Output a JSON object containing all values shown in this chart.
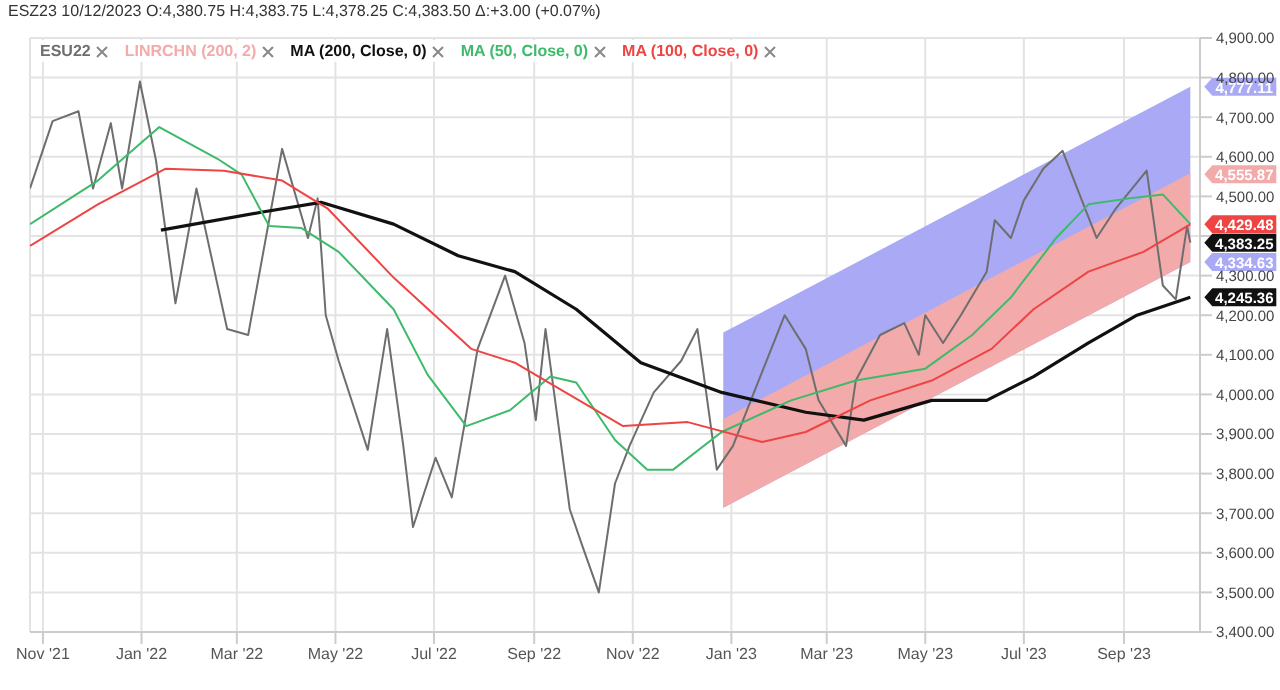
{
  "chart_data": {
    "type": "line",
    "title": "ESZ23 10/12/2023 O:4,380.75 H:4,383.75 L:4,378.25 C:4,383.50 Δ:+3.00 (+0.07%)",
    "xlim": [
      "2021-10-24",
      "2023-10-18"
    ],
    "xticks": [
      {
        "value": "2021-11-01",
        "label": "Nov '21"
      },
      {
        "value": "2022-01-01",
        "label": "Jan '22"
      },
      {
        "value": "2022-03-01",
        "label": "Mar '22"
      },
      {
        "value": "2022-05-01",
        "label": "May '22"
      },
      {
        "value": "2022-07-01",
        "label": "Jul '22"
      },
      {
        "value": "2022-09-01",
        "label": "Sep '22"
      },
      {
        "value": "2022-11-01",
        "label": "Nov '22"
      },
      {
        "value": "2023-01-01",
        "label": "Jan '23"
      },
      {
        "value": "2023-03-01",
        "label": "Mar '23"
      },
      {
        "value": "2023-05-01",
        "label": "May '23"
      },
      {
        "value": "2023-07-01",
        "label": "Jul '23"
      },
      {
        "value": "2023-09-01",
        "label": "Sep '23"
      }
    ],
    "ylim": [
      3400,
      4900
    ],
    "yticks": [
      {
        "value": 3400,
        "label": "3,400.00"
      },
      {
        "value": 3500,
        "label": "3,500.00"
      },
      {
        "value": 3600,
        "label": "3,600.00"
      },
      {
        "value": 3700,
        "label": "3,700.00"
      },
      {
        "value": 3800,
        "label": "3,800.00"
      },
      {
        "value": 3900,
        "label": "3,900.00"
      },
      {
        "value": 4000,
        "label": "4,000.00"
      },
      {
        "value": 4100,
        "label": "4,100.00"
      },
      {
        "value": 4200,
        "label": "4,200.00"
      },
      {
        "value": 4300,
        "label": "4,300.00"
      },
      {
        "value": 4400,
        "label": null
      },
      {
        "value": 4500,
        "label": "4,500.00"
      },
      {
        "value": 4600,
        "label": "4,600.00"
      },
      {
        "value": 4700,
        "label": "4,700.00"
      },
      {
        "value": 4800,
        "label": "4,800.00"
      },
      {
        "value": 4900,
        "label": "4,900.00"
      }
    ],
    "grid": true,
    "legend": "top left",
    "series": [
      {
        "name": "ESU22",
        "color": "#6e6e6e",
        "x": [
          "2021-10-24",
          "2021-11-07",
          "2021-11-23",
          "2021-12-02",
          "2021-12-13",
          "2021-12-20",
          "2021-12-31",
          "2022-01-10",
          "2022-01-22",
          "2022-02-04",
          "2022-02-23",
          "2022-03-08",
          "2022-03-29",
          "2022-04-14",
          "2022-04-20",
          "2022-04-25",
          "2022-05-03",
          "2022-05-21",
          "2022-06-02",
          "2022-06-12",
          "2022-06-18",
          "2022-07-02",
          "2022-07-12",
          "2022-07-28",
          "2022-08-14",
          "2022-08-26",
          "2022-09-02",
          "2022-09-08",
          "2022-09-23",
          "2022-10-01",
          "2022-10-11",
          "2022-10-21",
          "2022-10-30",
          "2022-11-14",
          "2022-12-01",
          "2022-12-11",
          "2022-12-23",
          "2023-01-02",
          "2023-01-15",
          "2023-02-03",
          "2023-02-16",
          "2023-02-24",
          "2023-03-13",
          "2023-03-19",
          "2023-04-03",
          "2023-04-18",
          "2023-04-27",
          "2023-05-01",
          "2023-05-12",
          "2023-05-23",
          "2023-06-08",
          "2023-06-13",
          "2023-06-23",
          "2023-07-01",
          "2023-07-13",
          "2023-07-25",
          "2023-08-03",
          "2023-08-15",
          "2023-08-27",
          "2023-09-15",
          "2023-09-25",
          "2023-10-03",
          "2023-10-10",
          "2023-10-12"
        ],
        "values": [
          4520,
          4690,
          4715,
          4520,
          4685,
          4520,
          4790,
          4590,
          4230,
          4520,
          4165,
          4150,
          4620,
          4395,
          4495,
          4200,
          4085,
          3860,
          4165,
          3870,
          3665,
          3840,
          3740,
          4115,
          4300,
          4130,
          3935,
          4165,
          3710,
          3615,
          3500,
          3775,
          3870,
          4005,
          4085,
          4165,
          3810,
          3870,
          4005,
          4200,
          4115,
          3985,
          3870,
          4035,
          4150,
          4180,
          4100,
          4200,
          4130,
          4200,
          4310,
          4440,
          4395,
          4490,
          4570,
          4615,
          4520,
          4395,
          4470,
          4565,
          4275,
          4240,
          4425,
          4383.25
        ]
      },
      {
        "name": "LINRCHN (200, 2)",
        "type": "area",
        "color": "#f2aaaa",
        "colors": [
          "#a9a9f6",
          "#f2aaaa"
        ],
        "x": [
          "2022-12-27",
          "2023-10-12"
        ],
        "values": [
          3935,
          4555.87
        ],
        "lower": [
          3714,
          4334.63
        ],
        "upper": [
          4156,
          4777.11
        ]
      },
      {
        "name": "MA (200, Close, 0)",
        "color": "#111111",
        "x": [
          "2022-01-13",
          "2022-03-16",
          "2022-04-22",
          "2022-06-06",
          "2022-07-16",
          "2022-08-20",
          "2022-09-27",
          "2022-10-28",
          "2022-11-06",
          "2022-12-26",
          "2023-02-16",
          "2023-03-24",
          "2023-05-05",
          "2023-06-08",
          "2023-07-07",
          "2023-08-10",
          "2023-09-09",
          "2023-10-12"
        ],
        "values": [
          4415,
          4460,
          4485,
          4430,
          4350,
          4310,
          4215,
          4110,
          4080,
          4005,
          3955,
          3935,
          3985,
          3985,
          4045,
          4130,
          4200,
          4245.36
        ]
      },
      {
        "name": "MA (50, Close, 0)",
        "color": "#3dba6a",
        "x": [
          "2021-10-24",
          "2021-12-05",
          "2022-01-12",
          "2022-02-17",
          "2022-03-04",
          "2022-03-21",
          "2022-04-10",
          "2022-05-03",
          "2022-06-06",
          "2022-06-27",
          "2022-07-21",
          "2022-08-17",
          "2022-09-11",
          "2022-09-27",
          "2022-10-21",
          "2022-11-10",
          "2022-11-26",
          "2022-12-26",
          "2023-02-07",
          "2023-03-19",
          "2023-05-01",
          "2023-05-30",
          "2023-06-23",
          "2023-07-21",
          "2023-08-10",
          "2023-09-04",
          "2023-09-25",
          "2023-10-12"
        ],
        "values": [
          4430,
          4540,
          4675,
          4595,
          4555,
          4425,
          4420,
          4360,
          4215,
          4050,
          3920,
          3960,
          4045,
          4030,
          3885,
          3810,
          3810,
          3905,
          3985,
          4035,
          4065,
          4150,
          4245,
          4395,
          4480,
          4495,
          4505,
          4430
        ]
      },
      {
        "name": "MA (100, Close, 0)",
        "color": "#ee4444",
        "x": [
          "2021-10-24",
          "2021-12-05",
          "2022-01-16",
          "2022-02-21",
          "2022-03-29",
          "2022-04-26",
          "2022-06-06",
          "2022-07-24",
          "2022-08-20",
          "2022-09-14",
          "2022-10-26",
          "2022-12-05",
          "2023-01-20",
          "2023-02-16",
          "2023-03-28",
          "2023-05-05",
          "2023-06-11",
          "2023-07-07",
          "2023-08-10",
          "2023-09-13",
          "2023-10-12"
        ],
        "values": [
          4375,
          4480,
          4570,
          4565,
          4540,
          4470,
          4295,
          4115,
          4080,
          4020,
          3920,
          3930,
          3880,
          3905,
          3985,
          4035,
          4115,
          4215,
          4310,
          4360,
          4429.48
        ]
      }
    ],
    "annotations": [
      {
        "text": "4,777.11",
        "x": "2023-10-12",
        "y": 4777.11
      },
      {
        "text": "4,555.87",
        "x": "2023-10-12",
        "y": 4555.87
      },
      {
        "text": "4,429.48",
        "x": "2023-10-12",
        "y": 4429.48
      },
      {
        "text": "4,383.25",
        "x": "2023-10-12",
        "y": 4383.25
      },
      {
        "text": "4,334.63",
        "x": "2023-10-12",
        "y": 4334.63
      },
      {
        "text": "4,245.36",
        "x": "2023-10-12",
        "y": 4245.36
      }
    ]
  }
}
